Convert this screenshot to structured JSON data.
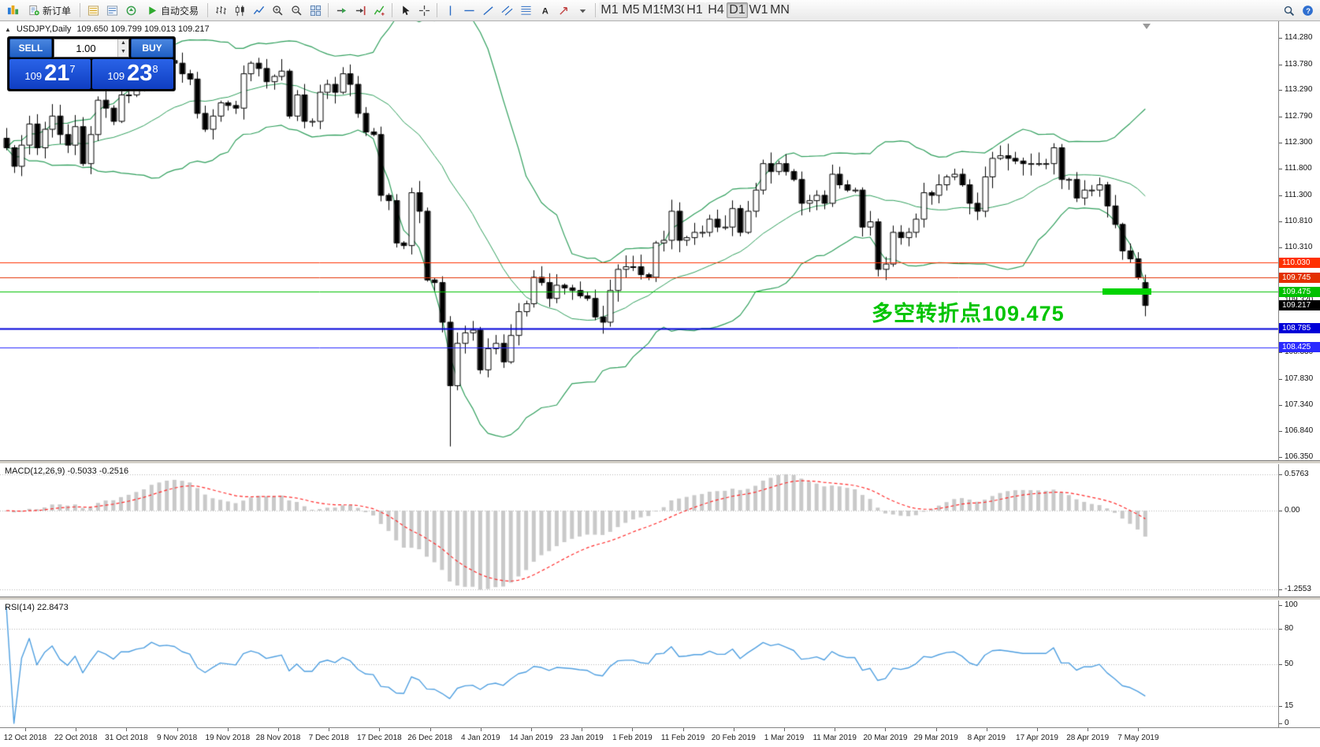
{
  "toolbar": {
    "active_timeframe": "D1",
    "items": [
      {
        "type": "icon",
        "name": "app-icon",
        "icon": "app"
      },
      {
        "type": "button",
        "name": "new-order-button",
        "icon": "neworder",
        "label": "新订单"
      },
      {
        "type": "sep"
      },
      {
        "type": "icon",
        "name": "market-watch-icon",
        "icon": "market"
      },
      {
        "type": "icon",
        "name": "data-window-icon",
        "icon": "data"
      },
      {
        "type": "icon",
        "name": "navigator-icon",
        "icon": "nav"
      },
      {
        "type": "button",
        "name": "auto-trading-button",
        "icon": "play",
        "label": "自动交易"
      },
      {
        "type": "sep"
      },
      {
        "type": "icon",
        "name": "bar-chart-icon",
        "icon": "bars"
      },
      {
        "type": "icon",
        "name": "candlestick-chart-icon",
        "icon": "candles"
      },
      {
        "type": "icon",
        "name": "line-chart-icon",
        "icon": "line"
      },
      {
        "type": "icon",
        "name": "zoom-in-icon",
        "icon": "zoomin"
      },
      {
        "type": "icon",
        "name": "zoom-out-icon",
        "icon": "zoomout"
      },
      {
        "type": "icon",
        "name": "tile-windows-icon",
        "icon": "tile"
      },
      {
        "type": "sep"
      },
      {
        "type": "icon",
        "name": "auto-scroll-icon",
        "icon": "autoscroll"
      },
      {
        "type": "icon",
        "name": "chart-shift-icon",
        "icon": "shift"
      },
      {
        "type": "icon",
        "name": "indicators-list-icon",
        "icon": "indicators"
      },
      {
        "type": "sep"
      },
      {
        "type": "icon",
        "name": "cursor-icon",
        "icon": "cursor"
      },
      {
        "type": "icon",
        "name": "crosshair-icon",
        "icon": "crosshair"
      },
      {
        "type": "sep"
      },
      {
        "type": "icon",
        "name": "vertical-line-icon",
        "icon": "vline"
      },
      {
        "type": "icon",
        "name": "horizontal-line-icon",
        "icon": "hline"
      },
      {
        "type": "icon",
        "name": "trendline-icon",
        "icon": "trend"
      },
      {
        "type": "icon",
        "name": "channel-icon",
        "icon": "channel"
      },
      {
        "type": "icon",
        "name": "fibonacci-icon",
        "icon": "fibo"
      },
      {
        "type": "icon",
        "name": "text-label-icon",
        "icon": "text"
      },
      {
        "type": "icon",
        "name": "arrow-tool-icon",
        "icon": "arrows"
      },
      {
        "type": "icon",
        "name": "shapes-dropdown-icon",
        "icon": "dropdown"
      },
      {
        "type": "sep"
      },
      {
        "type": "tf",
        "label": "M1"
      },
      {
        "type": "tf",
        "label": "M5"
      },
      {
        "type": "tf",
        "label": "M15"
      },
      {
        "type": "tf",
        "label": "M30"
      },
      {
        "type": "tf",
        "label": "H1"
      },
      {
        "type": "tf",
        "label": "H4"
      },
      {
        "type": "tf",
        "label": "D1"
      },
      {
        "type": "tf",
        "label": "W1"
      },
      {
        "type": "tf",
        "label": "MN"
      },
      {
        "type": "spring"
      },
      {
        "type": "icon",
        "name": "search-icon",
        "icon": "search"
      },
      {
        "type": "icon",
        "name": "help-icon",
        "icon": "help"
      }
    ]
  },
  "chart": {
    "symbol": "USDJPY,Daily",
    "ohlc_text": "109.650 109.799 109.013 109.217",
    "collapse_arrow": "▲",
    "annotation_text": "多空转折点109.475",
    "price_axis_ticks": [
      "114.280",
      "113.780",
      "113.290",
      "112.790",
      "112.300",
      "111.800",
      "111.300",
      "110.810",
      "110.310",
      "109.320",
      "108.330",
      "107.830",
      "107.340",
      "106.840",
      "106.350"
    ],
    "hlines": [
      {
        "price": 110.03,
        "label": "110.030",
        "color": "#ff3000",
        "width": 1
      },
      {
        "price": 109.745,
        "label": "109.745",
        "color": "#e33000",
        "width": 1
      },
      {
        "price": 109.475,
        "label": "109.475",
        "color": "#00c000",
        "width": 1
      },
      {
        "price": 108.785,
        "label": "108.785",
        "color": "#0000d8",
        "width": 2
      },
      {
        "price": 108.425,
        "label": "108.425",
        "color": "#2a2aff",
        "width": 1
      }
    ],
    "current_price": {
      "label": "109.217",
      "price": 109.217,
      "bg": "#000000"
    },
    "colors": {
      "bollinger": "#2e9e5b",
      "candle_up_fill": "#ffffff",
      "candle_down_fill": "#000000",
      "candle_border": "#000000",
      "macd_hist": "#c9c9c9",
      "macd_signal": "#ff2a2a",
      "rsi_line": "#4f9fe0",
      "annotation": "#00c400",
      "marker": "#00d300"
    }
  },
  "trade_panel": {
    "sell_label": "SELL",
    "buy_label": "BUY",
    "volume": "1.00",
    "sell_price": {
      "prefix": "109",
      "big": "21",
      "sup": "7"
    },
    "buy_price": {
      "prefix": "109",
      "big": "23",
      "sup": "8"
    }
  },
  "macd": {
    "label": "MACD(12,26,9) -0.5033 -0.2516",
    "axis": [
      "0.5763",
      "0.00",
      "-1.2553"
    ],
    "levels": [
      0.5763,
      0,
      -1.2553
    ]
  },
  "rsi": {
    "label": "RSI(14) 22.8473",
    "axis": [
      "100",
      "80",
      "50",
      "15",
      "0"
    ],
    "levels": [
      80,
      50,
      15
    ]
  },
  "time_axis": [
    "12 Oct 2018",
    "22 Oct 2018",
    "31 Oct 2018",
    "9 Nov 2018",
    "19 Nov 2018",
    "28 Nov 2018",
    "7 Dec 2018",
    "17 Dec 2018",
    "26 Dec 2018",
    "4 Jan 2019",
    "14 Jan 2019",
    "23 Jan 2019",
    "1 Feb 2019",
    "11 Feb 2019",
    "20 Feb 2019",
    "1 Mar 2019",
    "11 Mar 2019",
    "20 Mar 2019",
    "29 Mar 2019",
    "8 Apr 2019",
    "17 Apr 2019",
    "28 Apr 2019",
    "7 May 2019"
  ],
  "chart_data": {
    "type": "candlestick",
    "symbol": "USDJPY",
    "timeframe": "D1",
    "visible_range": {
      "from": "12 Oct 2018",
      "to": "10 May 2019"
    },
    "y_axis_range": [
      106.35,
      114.53
    ],
    "closes": [
      112.2,
      111.85,
      112.25,
      112.65,
      112.2,
      112.55,
      112.8,
      112.45,
      112.25,
      112.6,
      111.9,
      112.45,
      113.1,
      112.95,
      112.7,
      113.2,
      113.2,
      113.4,
      113.5,
      113.95,
      113.8,
      113.85,
      113.8,
      113.6,
      113.5,
      112.85,
      112.55,
      112.8,
      113.05,
      113.0,
      112.95,
      113.6,
      113.8,
      113.7,
      113.45,
      113.55,
      113.65,
      112.8,
      113.2,
      112.7,
      112.7,
      113.25,
      113.4,
      113.25,
      113.6,
      113.4,
      112.85,
      112.5,
      112.45,
      111.3,
      111.2,
      110.4,
      110.35,
      111.35,
      111.0,
      109.7,
      109.65,
      108.9,
      107.7,
      108.5,
      108.7,
      108.75,
      108.0,
      108.4,
      108.5,
      108.15,
      108.65,
      109.1,
      109.25,
      109.75,
      109.65,
      109.35,
      109.6,
      109.55,
      109.5,
      109.4,
      109.35,
      109.0,
      108.9,
      109.5,
      109.9,
      109.95,
      109.95,
      109.8,
      109.75,
      110.4,
      110.45,
      111.0,
      110.45,
      110.5,
      110.6,
      110.6,
      110.85,
      110.7,
      110.7,
      111.05,
      110.6,
      111.0,
      111.4,
      111.9,
      111.75,
      111.9,
      111.75,
      111.6,
      111.15,
      111.2,
      111.3,
      111.15,
      111.7,
      111.5,
      111.4,
      111.4,
      110.7,
      110.8,
      109.9,
      110.0,
      110.6,
      110.5,
      110.6,
      110.85,
      111.35,
      111.3,
      111.5,
      111.65,
      111.7,
      111.5,
      111.15,
      111.0,
      111.65,
      112.0,
      112.05,
      112.0,
      111.95,
      111.9,
      111.9,
      111.9,
      111.9,
      112.2,
      111.6,
      111.6,
      111.25,
      111.4,
      111.4,
      111.5,
      111.1,
      110.75,
      110.25,
      110.1,
      109.75,
      109.217
    ],
    "overrides": {
      "58": {
        "l": 106.55
      },
      "149": {
        "o": 109.65,
        "h": 109.799,
        "l": 109.013,
        "c": 109.217
      }
    },
    "indicators": {
      "bollinger": {
        "period": 20,
        "deviation": 2
      },
      "macd": {
        "fast": 12,
        "slow": 26,
        "signal": 9,
        "current_main": -0.5033,
        "current_signal": -0.2516
      },
      "rsi": {
        "period": 14,
        "current": 22.8473
      }
    }
  }
}
